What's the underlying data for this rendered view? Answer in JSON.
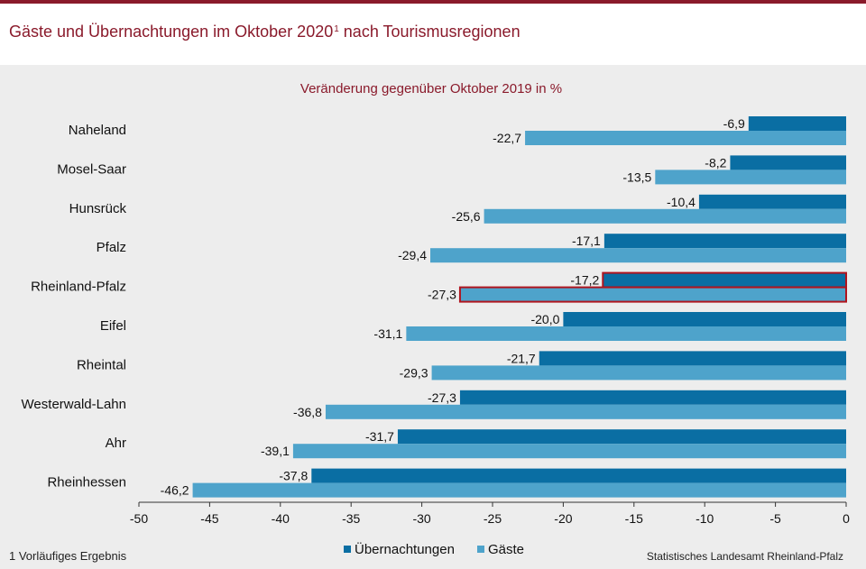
{
  "header": {
    "title": "Gäste und Übernachtungen im Oktober 2020",
    "title_footnote_mark": "1",
    "title_suffix": " nach Tourismusregionen"
  },
  "chart_data": {
    "type": "bar",
    "orientation": "horizontal",
    "subtitle": "Veränderung gegenüber Oktober 2019 in %",
    "categories": [
      "Naheland",
      "Mosel-Saar",
      "Hunsrück",
      "Pfalz",
      "Rheinland-Pfalz",
      "Eifel",
      "Rheintal",
      "Westerwald-Lahn",
      "Ahr",
      "Rheinhessen"
    ],
    "series": [
      {
        "name": "Übernachtungen",
        "values": [
          -6.9,
          -8.2,
          -10.4,
          -17.1,
          -17.2,
          -20.0,
          -21.7,
          -27.3,
          -31.7,
          -37.8
        ],
        "labels": [
          "-6,9",
          "-8,2",
          "-10,4",
          "-17,1",
          "-17,2",
          "-20,0",
          "-21,7",
          "-27,3",
          "-31,7",
          "-37,8"
        ]
      },
      {
        "name": "Gäste",
        "values": [
          -22.7,
          -13.5,
          -25.6,
          -29.4,
          -27.3,
          -31.1,
          -29.3,
          -36.8,
          -39.1,
          -46.2
        ],
        "labels": [
          "-22,7",
          "-13,5",
          "-25,6",
          "-29,4",
          "-27,3",
          "-31,1",
          "-29,3",
          "-36,8",
          "-39,1",
          "-46,2"
        ]
      }
    ],
    "xlim": [
      -50,
      0
    ],
    "xticks": [
      -50,
      -45,
      -40,
      -35,
      -30,
      -25,
      -20,
      -15,
      -10,
      -5,
      0
    ],
    "highlighted_category": "Rheinland-Pfalz",
    "grid": false,
    "legend_position": "bottom-center"
  },
  "colors": {
    "uebernachtungen": "#0a6ea3",
    "gaeste": "#4ea3cb",
    "accent": "#8a1a2b",
    "highlight_border": "#b0141e"
  },
  "footer": {
    "footnote": "1 Vorläufiges Ergebnis",
    "source": "Statistisches Landesamt Rheinland-Pfalz"
  }
}
